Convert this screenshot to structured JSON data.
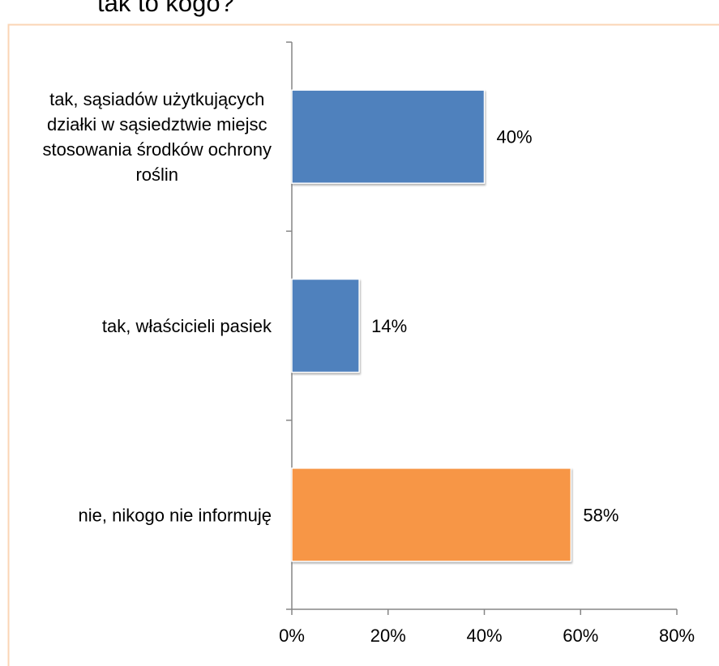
{
  "chart_data": {
    "type": "barh",
    "title": "tak to kogo?",
    "categories": [
      "tak, sąsiadów użytkujących działki w sąsiedztwie miejsc stosowania środków ochrony roślin",
      "tak, właścicieli pasiek",
      "nie, nikogo nie informuję"
    ],
    "values": [
      40,
      14,
      58
    ],
    "value_labels": [
      "40%",
      "14%",
      "58%"
    ],
    "colors": [
      "#4f81bd",
      "#4f81bd",
      "#f79646"
    ],
    "xlim": [
      0,
      80
    ],
    "xticks": [
      {
        "value": 0,
        "label": "0%"
      },
      {
        "value": 20,
        "label": "20%"
      },
      {
        "value": 40,
        "label": "40%"
      },
      {
        "value": 60,
        "label": "60%"
      },
      {
        "value": 80,
        "label": "80%"
      }
    ]
  }
}
